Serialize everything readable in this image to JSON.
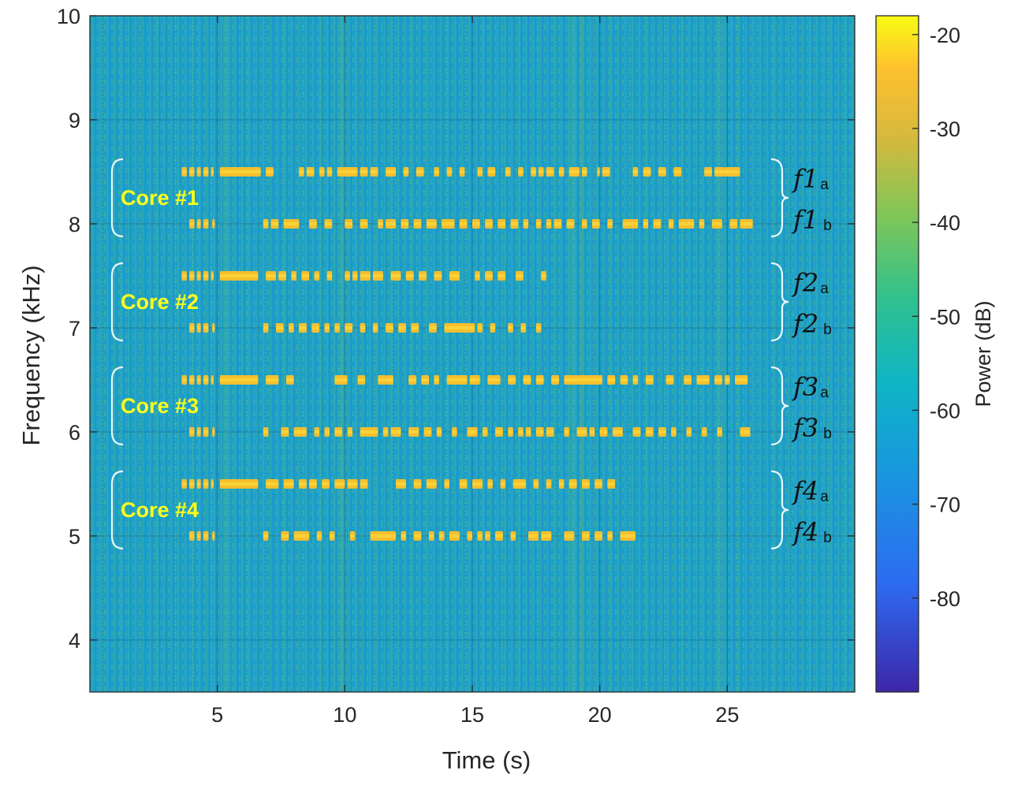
{
  "chart_data": {
    "type": "heatmap",
    "subtype": "spectrogram",
    "xlabel": "Time (s)",
    "ylabel": "Frequency (kHz)",
    "xlim": [
      0,
      30
    ],
    "ylim": [
      3.5,
      10
    ],
    "xticks": [
      5,
      10,
      15,
      20,
      25
    ],
    "yticks": [
      4,
      5,
      6,
      7,
      8,
      9,
      10
    ],
    "grid": true,
    "background_level_db": -55,
    "colorbar": {
      "label": "Power (dB)",
      "range": [
        -90,
        -18
      ],
      "ticks": [
        -20,
        -30,
        -40,
        -50,
        -60,
        -70,
        -80
      ],
      "colors": [
        "#3e26a8",
        "#2d6bf1",
        "#1ba3d8",
        "#23bfa4",
        "#7cc659",
        "#e4ba3d",
        "#f9fb15"
      ]
    },
    "cores": [
      {
        "label": "Core #1",
        "frequencies_khz": [
          8.5,
          8.0
        ]
      },
      {
        "label": "Core #2",
        "frequencies_khz": [
          7.5,
          7.0
        ]
      },
      {
        "label": "Core #3",
        "frequencies_khz": [
          6.5,
          6.0
        ]
      },
      {
        "label": "Core #4",
        "frequencies_khz": [
          5.5,
          5.0
        ]
      }
    ],
    "tones": [
      {
        "name": "f1",
        "sub": "a",
        "freq_khz": 8.5,
        "pulses": [
          [
            3.6,
            3.8
          ],
          [
            3.9,
            4.1
          ],
          [
            4.2,
            4.35
          ],
          [
            4.45,
            4.65
          ],
          [
            4.75,
            4.85
          ],
          [
            5.1,
            6.7
          ],
          [
            6.9,
            7.2
          ],
          [
            8.2,
            8.4
          ],
          [
            8.5,
            8.8
          ],
          [
            9.0,
            9.2
          ],
          [
            9.3,
            9.5
          ],
          [
            9.7,
            10.5
          ],
          [
            10.6,
            10.9
          ],
          [
            11.0,
            11.3
          ],
          [
            11.6,
            12.0
          ],
          [
            12.3,
            12.5
          ],
          [
            12.8,
            13.1
          ],
          [
            13.5,
            13.7
          ],
          [
            14.0,
            14.2
          ],
          [
            14.5,
            14.7
          ],
          [
            15.2,
            15.4
          ],
          [
            15.6,
            15.9
          ],
          [
            16.3,
            16.5
          ],
          [
            16.8,
            17.0
          ],
          [
            17.3,
            17.5
          ],
          [
            17.6,
            17.8
          ],
          [
            17.9,
            18.2
          ],
          [
            18.4,
            18.6
          ],
          [
            18.8,
            19.2
          ],
          [
            19.3,
            19.5
          ],
          [
            19.9,
            20.0
          ],
          [
            20.1,
            20.4
          ],
          [
            21.3,
            21.5
          ],
          [
            21.7,
            22.0
          ],
          [
            22.3,
            22.6
          ],
          [
            22.9,
            23.2
          ],
          [
            24.1,
            24.4
          ],
          [
            24.5,
            24.9
          ],
          [
            24.9,
            25.5
          ]
        ]
      },
      {
        "name": "f1",
        "sub": "b",
        "freq_khz": 8.0,
        "pulses": [
          [
            3.9,
            4.1
          ],
          [
            4.2,
            4.35
          ],
          [
            4.45,
            4.65
          ],
          [
            4.8,
            4.9
          ],
          [
            6.8,
            7.0
          ],
          [
            7.1,
            7.4
          ],
          [
            7.6,
            8.2
          ],
          [
            8.6,
            8.9
          ],
          [
            9.2,
            9.5
          ],
          [
            10.0,
            10.3
          ],
          [
            10.6,
            10.9
          ],
          [
            11.3,
            11.5
          ],
          [
            11.6,
            12.0
          ],
          [
            12.2,
            12.5
          ],
          [
            12.7,
            13.0
          ],
          [
            13.2,
            13.6
          ],
          [
            13.8,
            14.3
          ],
          [
            14.5,
            14.8
          ],
          [
            15.0,
            15.3
          ],
          [
            15.5,
            15.8
          ],
          [
            16.0,
            16.3
          ],
          [
            16.5,
            16.8
          ],
          [
            17.0,
            17.2
          ],
          [
            17.5,
            17.7
          ],
          [
            17.9,
            18.1
          ],
          [
            18.2,
            18.5
          ],
          [
            18.7,
            19.0
          ],
          [
            19.3,
            19.5
          ],
          [
            19.7,
            20.0
          ],
          [
            20.3,
            20.5
          ],
          [
            20.9,
            21.5
          ],
          [
            21.7,
            21.9
          ],
          [
            22.1,
            22.4
          ],
          [
            22.7,
            22.9
          ],
          [
            23.1,
            23.7
          ],
          [
            23.9,
            24.1
          ],
          [
            24.4,
            24.8
          ],
          [
            25.1,
            25.4
          ],
          [
            25.5,
            26.0
          ]
        ]
      },
      {
        "name": "f2",
        "sub": "a",
        "freq_khz": 7.5,
        "pulses": [
          [
            3.6,
            3.8
          ],
          [
            3.9,
            4.1
          ],
          [
            4.2,
            4.35
          ],
          [
            4.45,
            4.65
          ],
          [
            4.75,
            4.85
          ],
          [
            5.1,
            6.6
          ],
          [
            6.9,
            7.3
          ],
          [
            7.4,
            7.7
          ],
          [
            7.9,
            8.1
          ],
          [
            8.3,
            8.6
          ],
          [
            8.8,
            9.0
          ],
          [
            9.3,
            9.5
          ],
          [
            10.0,
            10.2
          ],
          [
            10.3,
            10.5
          ],
          [
            10.6,
            11.0
          ],
          [
            11.1,
            11.5
          ],
          [
            11.8,
            12.2
          ],
          [
            12.4,
            12.7
          ],
          [
            12.9,
            13.2
          ],
          [
            13.5,
            13.8
          ],
          [
            14.1,
            14.5
          ],
          [
            15.1,
            15.3
          ],
          [
            15.5,
            15.8
          ],
          [
            16.0,
            16.3
          ],
          [
            16.7,
            17.0
          ],
          [
            17.7,
            17.9
          ]
        ]
      },
      {
        "name": "f2",
        "sub": "b",
        "freq_khz": 7.0,
        "pulses": [
          [
            3.9,
            4.1
          ],
          [
            4.2,
            4.35
          ],
          [
            4.45,
            4.65
          ],
          [
            4.8,
            4.9
          ],
          [
            6.8,
            7.0
          ],
          [
            7.3,
            7.6
          ],
          [
            7.8,
            8.0
          ],
          [
            8.2,
            8.5
          ],
          [
            8.7,
            9.0
          ],
          [
            9.2,
            9.4
          ],
          [
            9.6,
            9.8
          ],
          [
            10.0,
            10.3
          ],
          [
            10.6,
            10.8
          ],
          [
            11.1,
            11.3
          ],
          [
            11.6,
            11.9
          ],
          [
            12.1,
            12.4
          ],
          [
            12.6,
            12.9
          ],
          [
            13.3,
            13.6
          ],
          [
            13.9,
            15.1
          ],
          [
            15.2,
            15.4
          ],
          [
            15.7,
            15.9
          ],
          [
            16.4,
            16.6
          ],
          [
            16.9,
            17.1
          ],
          [
            17.5,
            17.7
          ]
        ]
      },
      {
        "name": "f3",
        "sub": "a",
        "freq_khz": 6.5,
        "pulses": [
          [
            3.6,
            3.8
          ],
          [
            3.9,
            4.1
          ],
          [
            4.2,
            4.35
          ],
          [
            4.45,
            4.65
          ],
          [
            4.75,
            4.85
          ],
          [
            5.1,
            6.6
          ],
          [
            6.9,
            7.4
          ],
          [
            7.7,
            8.0
          ],
          [
            9.6,
            10.1
          ],
          [
            10.5,
            10.8
          ],
          [
            11.3,
            11.6
          ],
          [
            11.6,
            11.9
          ],
          [
            12.5,
            12.8
          ],
          [
            13.0,
            13.3
          ],
          [
            13.5,
            13.7
          ],
          [
            14.0,
            14.8
          ],
          [
            14.9,
            15.3
          ],
          [
            15.6,
            16.1
          ],
          [
            16.4,
            16.7
          ],
          [
            17.0,
            17.3
          ],
          [
            17.5,
            17.8
          ],
          [
            18.1,
            18.4
          ],
          [
            18.6,
            20.1
          ],
          [
            20.3,
            20.6
          ],
          [
            20.8,
            21.1
          ],
          [
            21.3,
            21.5
          ],
          [
            21.8,
            22.1
          ],
          [
            22.6,
            22.9
          ],
          [
            23.3,
            23.6
          ],
          [
            23.8,
            24.3
          ],
          [
            24.5,
            24.8
          ],
          [
            24.9,
            25.1
          ],
          [
            25.3,
            25.8
          ]
        ]
      },
      {
        "name": "f3",
        "sub": "b",
        "freq_khz": 6.0,
        "pulses": [
          [
            3.9,
            4.1
          ],
          [
            4.2,
            4.35
          ],
          [
            4.45,
            4.65
          ],
          [
            4.8,
            4.9
          ],
          [
            6.8,
            7.0
          ],
          [
            7.5,
            7.8
          ],
          [
            8.0,
            8.5
          ],
          [
            8.8,
            9.0
          ],
          [
            9.2,
            9.4
          ],
          [
            9.6,
            9.9
          ],
          [
            10.1,
            10.3
          ],
          [
            10.6,
            11.3
          ],
          [
            11.5,
            11.7
          ],
          [
            11.8,
            12.2
          ],
          [
            12.5,
            12.9
          ],
          [
            13.1,
            13.4
          ],
          [
            13.6,
            13.8
          ],
          [
            14.2,
            14.4
          ],
          [
            14.8,
            15.2
          ],
          [
            15.4,
            15.6
          ],
          [
            15.9,
            16.2
          ],
          [
            16.4,
            16.6
          ],
          [
            16.8,
            17.0
          ],
          [
            17.1,
            17.3
          ],
          [
            17.5,
            17.8
          ],
          [
            17.9,
            18.2
          ],
          [
            18.6,
            18.8
          ],
          [
            19.1,
            19.5
          ],
          [
            19.6,
            19.8
          ],
          [
            20.0,
            20.3
          ],
          [
            20.5,
            20.9
          ],
          [
            21.3,
            21.6
          ],
          [
            21.8,
            22.1
          ],
          [
            22.3,
            22.6
          ],
          [
            22.8,
            23.0
          ],
          [
            23.4,
            23.6
          ],
          [
            24.0,
            24.2
          ],
          [
            24.6,
            24.8
          ],
          [
            25.5,
            25.9
          ]
        ]
      },
      {
        "name": "f4",
        "sub": "a",
        "freq_khz": 5.5,
        "pulses": [
          [
            3.6,
            3.8
          ],
          [
            3.9,
            4.1
          ],
          [
            4.2,
            4.35
          ],
          [
            4.45,
            4.65
          ],
          [
            4.75,
            4.85
          ],
          [
            5.1,
            6.6
          ],
          [
            6.9,
            7.4
          ],
          [
            7.6,
            8.0
          ],
          [
            8.2,
            8.5
          ],
          [
            8.6,
            8.9
          ],
          [
            9.1,
            9.4
          ],
          [
            9.6,
            10.0
          ],
          [
            10.1,
            10.5
          ],
          [
            10.6,
            10.9
          ],
          [
            12.0,
            12.4
          ],
          [
            12.7,
            13.0
          ],
          [
            13.2,
            13.6
          ],
          [
            13.9,
            14.1
          ],
          [
            14.5,
            14.8
          ],
          [
            15.0,
            15.4
          ],
          [
            15.6,
            15.8
          ],
          [
            16.1,
            16.3
          ],
          [
            16.6,
            17.1
          ],
          [
            17.4,
            17.6
          ],
          [
            17.9,
            18.1
          ],
          [
            18.4,
            18.6
          ],
          [
            18.8,
            19.1
          ],
          [
            19.3,
            19.6
          ],
          [
            19.8,
            20.1
          ],
          [
            20.3,
            20.6
          ]
        ]
      },
      {
        "name": "f4",
        "sub": "b",
        "freq_khz": 5.0,
        "pulses": [
          [
            3.9,
            4.1
          ],
          [
            4.2,
            4.35
          ],
          [
            4.45,
            4.65
          ],
          [
            4.8,
            4.9
          ],
          [
            6.8,
            7.0
          ],
          [
            7.5,
            7.8
          ],
          [
            8.0,
            8.6
          ],
          [
            8.9,
            9.1
          ],
          [
            9.4,
            9.6
          ],
          [
            10.2,
            10.4
          ],
          [
            11.0,
            12.0
          ],
          [
            12.2,
            12.4
          ],
          [
            12.7,
            13.0
          ],
          [
            13.3,
            13.5
          ],
          [
            13.7,
            13.9
          ],
          [
            14.1,
            14.5
          ],
          [
            14.8,
            15.0
          ],
          [
            15.2,
            15.4
          ],
          [
            15.5,
            15.7
          ],
          [
            15.9,
            16.2
          ],
          [
            16.5,
            16.7
          ],
          [
            17.2,
            17.6
          ],
          [
            17.7,
            18.1
          ],
          [
            18.6,
            19.0
          ],
          [
            19.3,
            19.6
          ],
          [
            19.8,
            20.1
          ],
          [
            20.3,
            20.5
          ],
          [
            20.8,
            21.4
          ]
        ]
      }
    ]
  }
}
